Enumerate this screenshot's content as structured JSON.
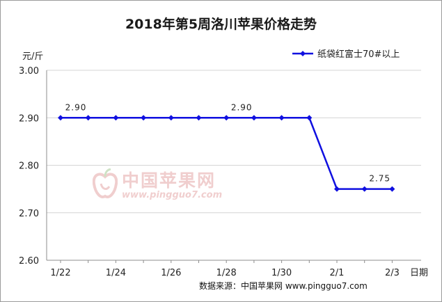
{
  "chart_data": {
    "type": "line",
    "title": "2018年第5周洛川苹果价格走势",
    "ylabel": "元/斤",
    "xlabel": "日期",
    "ylim": [
      2.6,
      3.0
    ],
    "yticks": [
      "3.00",
      "2.90",
      "2.80",
      "2.70",
      "2.60"
    ],
    "x": [
      "1/22",
      "1/23",
      "1/24",
      "1/25",
      "1/26",
      "1/27",
      "1/28",
      "1/29",
      "1/30",
      "1/31",
      "2/1",
      "2/2",
      "2/3"
    ],
    "xtick_labels": [
      "1/22",
      "1/24",
      "1/26",
      "1/28",
      "1/30",
      "2/1",
      "2/3"
    ],
    "series": [
      {
        "name": "纸袋红富士70#以上",
        "color": "#1010e0",
        "values": [
          2.9,
          2.9,
          2.9,
          2.9,
          2.9,
          2.9,
          2.9,
          2.9,
          2.9,
          2.9,
          2.75,
          2.75,
          2.75
        ]
      }
    ],
    "data_labels": [
      {
        "x": "1/22",
        "text": "2.90"
      },
      {
        "x": "1/28",
        "text": "2.90"
      },
      {
        "x": "2/2",
        "text": "2.75"
      }
    ],
    "grid": "horizontal",
    "legend": "top-right"
  },
  "watermark": {
    "text": "中国苹果网",
    "url": "www.pingguo7.com"
  },
  "source": "数据来源：中国苹果网 www.pingguo7.com"
}
